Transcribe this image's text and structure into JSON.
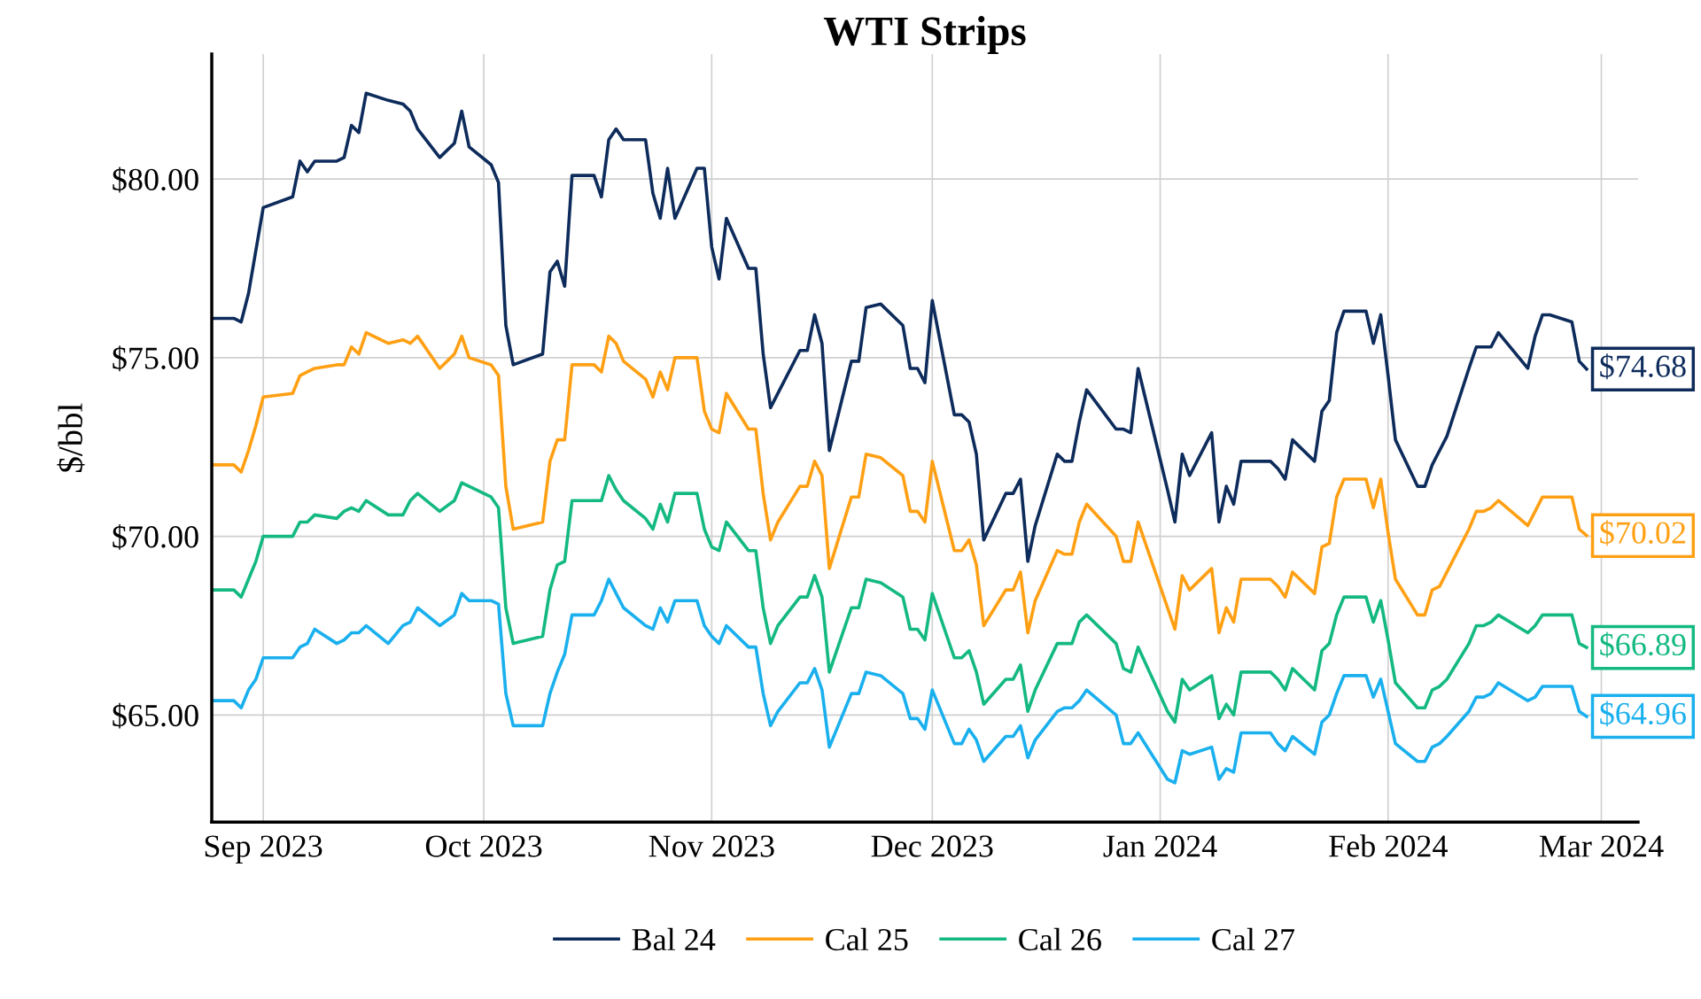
{
  "chart_data": {
    "type": "line",
    "title": "WTI Strips",
    "ylabel": "$/bbl",
    "x": [
      "2023-08-25",
      "2023-08-28",
      "2023-08-29",
      "2023-08-30",
      "2023-08-31",
      "2023-09-01",
      "2023-09-05",
      "2023-09-06",
      "2023-09-07",
      "2023-09-08",
      "2023-09-11",
      "2023-09-12",
      "2023-09-13",
      "2023-09-14",
      "2023-09-15",
      "2023-09-18",
      "2023-09-20",
      "2023-09-21",
      "2023-09-22",
      "2023-09-25",
      "2023-09-27",
      "2023-09-28",
      "2023-09-29",
      "2023-10-02",
      "2023-10-03",
      "2023-10-04",
      "2023-10-05",
      "2023-10-09",
      "2023-10-10",
      "2023-10-11",
      "2023-10-12",
      "2023-10-13",
      "2023-10-16",
      "2023-10-17",
      "2023-10-18",
      "2023-10-19",
      "2023-10-20",
      "2023-10-23",
      "2023-10-24",
      "2023-10-25",
      "2023-10-26",
      "2023-10-27",
      "2023-10-30",
      "2023-10-31",
      "2023-11-01",
      "2023-11-02",
      "2023-11-03",
      "2023-11-06",
      "2023-11-07",
      "2023-11-08",
      "2023-11-09",
      "2023-11-10",
      "2023-11-13",
      "2023-11-14",
      "2023-11-15",
      "2023-11-16",
      "2023-11-17",
      "2023-11-20",
      "2023-11-21",
      "2023-11-22",
      "2023-11-24",
      "2023-11-27",
      "2023-11-28",
      "2023-11-29",
      "2023-11-30",
      "2023-12-01",
      "2023-12-04",
      "2023-12-05",
      "2023-12-06",
      "2023-12-07",
      "2023-12-08",
      "2023-12-11",
      "2023-12-12",
      "2023-12-13",
      "2023-12-14",
      "2023-12-15",
      "2023-12-18",
      "2023-12-19",
      "2023-12-20",
      "2023-12-21",
      "2023-12-22",
      "2023-12-26",
      "2023-12-27",
      "2023-12-28",
      "2023-12-29",
      "2024-01-02",
      "2024-01-03",
      "2024-01-04",
      "2024-01-05",
      "2024-01-08",
      "2024-01-09",
      "2024-01-10",
      "2024-01-11",
      "2024-01-12",
      "2024-01-16",
      "2024-01-17",
      "2024-01-18",
      "2024-01-19",
      "2024-01-22",
      "2024-01-23",
      "2024-01-24",
      "2024-01-25",
      "2024-01-26",
      "2024-01-29",
      "2024-01-30",
      "2024-01-31",
      "2024-02-01",
      "2024-02-02",
      "2024-02-05",
      "2024-02-06",
      "2024-02-07",
      "2024-02-08",
      "2024-02-09",
      "2024-02-12",
      "2024-02-13",
      "2024-02-14",
      "2024-02-15",
      "2024-02-16",
      "2024-02-20",
      "2024-02-21",
      "2024-02-22",
      "2024-02-23",
      "2024-02-26",
      "2024-02-27",
      "2024-02-28"
    ],
    "series": [
      {
        "name": "Bal 24",
        "color": "#0d2b5b",
        "values": [
          76.1,
          76.1,
          76.0,
          76.8,
          78.0,
          79.2,
          79.5,
          80.5,
          80.2,
          80.5,
          80.5,
          80.6,
          81.5,
          81.3,
          82.4,
          82.2,
          82.1,
          81.9,
          81.4,
          80.6,
          81.0,
          81.9,
          80.9,
          80.4,
          79.9,
          75.9,
          74.8,
          75.1,
          77.4,
          77.7,
          77.0,
          80.1,
          80.1,
          79.5,
          81.1,
          81.4,
          81.1,
          81.1,
          79.6,
          78.9,
          80.3,
          78.9,
          80.3,
          80.3,
          78.1,
          77.2,
          78.9,
          77.5,
          77.5,
          75.1,
          73.6,
          74.0,
          75.2,
          75.2,
          76.2,
          75.4,
          72.4,
          74.9,
          74.9,
          76.4,
          76.5,
          75.9,
          74.7,
          74.7,
          74.3,
          76.6,
          73.4,
          73.4,
          73.2,
          72.3,
          69.9,
          71.2,
          71.2,
          71.6,
          69.3,
          70.3,
          72.3,
          72.1,
          72.1,
          73.2,
          74.1,
          73.0,
          73.0,
          72.9,
          74.7,
          71.3,
          70.4,
          72.3,
          71.7,
          72.9,
          70.4,
          71.4,
          70.9,
          72.1,
          72.1,
          71.9,
          71.6,
          72.7,
          72.1,
          73.5,
          73.8,
          75.7,
          76.3,
          76.3,
          75.4,
          76.2,
          74.5,
          72.7,
          71.4,
          71.4,
          72.0,
          72.4,
          72.8,
          74.7,
          75.3,
          75.3,
          75.3,
          75.7,
          74.7,
          75.6,
          76.2,
          76.2,
          76.0,
          74.9,
          74.68
        ],
        "value_labels": [
          null,
          null,
          null,
          null,
          null,
          null,
          null,
          null,
          null,
          null,
          null,
          null,
          null,
          null,
          null,
          null,
          null,
          null,
          null,
          null,
          null,
          null,
          null,
          null,
          null,
          null,
          null,
          null,
          null,
          null,
          null,
          null,
          null,
          null,
          null,
          null,
          null,
          null,
          null,
          null,
          null,
          null,
          null,
          null,
          null,
          null,
          null,
          null,
          null,
          null,
          null,
          null,
          null,
          null,
          null,
          null,
          null,
          null,
          null,
          null,
          null,
          null,
          null,
          null,
          null,
          null,
          null,
          null,
          null,
          null,
          null,
          null,
          null,
          null,
          null,
          null,
          null,
          null,
          null,
          null,
          null,
          null,
          null,
          null,
          null,
          null,
          null,
          null,
          null,
          null,
          null,
          null,
          null,
          null,
          null,
          null,
          null,
          null,
          null,
          null,
          null,
          null,
          null,
          null,
          null,
          null,
          null,
          null,
          null,
          null,
          null,
          null,
          null,
          null,
          null,
          null,
          null,
          null,
          null,
          null,
          null,
          null,
          null,
          null,
          "$74.68"
        ]
      },
      {
        "name": "Cal 25",
        "color": "#ffa014",
        "values": [
          72.0,
          72.0,
          71.8,
          72.4,
          73.1,
          73.9,
          74.0,
          74.5,
          74.6,
          74.7,
          74.8,
          74.8,
          75.3,
          75.1,
          75.7,
          75.4,
          75.5,
          75.4,
          75.6,
          74.7,
          75.1,
          75.6,
          75.0,
          74.8,
          74.5,
          71.4,
          70.2,
          70.4,
          72.1,
          72.7,
          72.7,
          74.8,
          74.8,
          74.6,
          75.6,
          75.4,
          74.9,
          74.4,
          73.9,
          74.6,
          74.1,
          75.0,
          75.0,
          73.5,
          73.0,
          72.9,
          74.0,
          73.0,
          73.0,
          71.2,
          69.9,
          70.4,
          71.4,
          71.4,
          72.1,
          71.7,
          69.1,
          71.1,
          71.1,
          72.3,
          72.2,
          71.7,
          70.7,
          70.7,
          70.4,
          72.1,
          69.6,
          69.6,
          69.9,
          69.2,
          67.5,
          68.5,
          68.5,
          69.0,
          67.3,
          68.2,
          69.6,
          69.5,
          69.5,
          70.4,
          70.9,
          70.0,
          69.3,
          69.3,
          70.4,
          68.0,
          67.4,
          68.9,
          68.5,
          69.1,
          67.3,
          68.0,
          67.6,
          68.8,
          68.8,
          68.6,
          68.3,
          69.0,
          68.4,
          69.7,
          69.8,
          71.1,
          71.6,
          71.6,
          70.8,
          71.6,
          70.1,
          68.8,
          67.8,
          67.8,
          68.5,
          68.6,
          69.0,
          70.2,
          70.7,
          70.7,
          70.8,
          71.0,
          70.3,
          70.7,
          71.1,
          71.1,
          71.1,
          70.2,
          70.02
        ],
        "value_labels": [
          null,
          null,
          null,
          null,
          null,
          null,
          null,
          null,
          null,
          null,
          null,
          null,
          null,
          null,
          null,
          null,
          null,
          null,
          null,
          null,
          null,
          null,
          null,
          null,
          null,
          null,
          null,
          null,
          null,
          null,
          null,
          null,
          null,
          null,
          null,
          null,
          null,
          null,
          null,
          null,
          null,
          null,
          null,
          null,
          null,
          null,
          null,
          null,
          null,
          null,
          null,
          null,
          null,
          null,
          null,
          null,
          null,
          null,
          null,
          null,
          null,
          null,
          null,
          null,
          null,
          null,
          null,
          null,
          null,
          null,
          null,
          null,
          null,
          null,
          null,
          null,
          null,
          null,
          null,
          null,
          null,
          null,
          null,
          null,
          null,
          null,
          null,
          null,
          null,
          null,
          null,
          null,
          null,
          null,
          null,
          null,
          null,
          null,
          null,
          null,
          null,
          null,
          null,
          null,
          null,
          null,
          null,
          null,
          null,
          null,
          null,
          null,
          null,
          null,
          null,
          null,
          null,
          null,
          null,
          null,
          null,
          null,
          null,
          null,
          "$70.02"
        ]
      },
      {
        "name": "Cal 26",
        "color": "#14b982",
        "values": [
          68.5,
          68.5,
          68.3,
          68.8,
          69.3,
          70.0,
          70.0,
          70.4,
          70.4,
          70.6,
          70.5,
          70.7,
          70.8,
          70.7,
          71.0,
          70.6,
          70.6,
          71.0,
          71.2,
          70.7,
          71.0,
          71.5,
          71.4,
          71.1,
          70.8,
          68.0,
          67.0,
          67.2,
          68.5,
          69.2,
          69.3,
          71.0,
          71.0,
          71.0,
          71.7,
          71.3,
          71.0,
          70.5,
          70.2,
          70.9,
          70.4,
          71.2,
          71.2,
          70.2,
          69.7,
          69.6,
          70.4,
          69.6,
          69.6,
          68.0,
          67.0,
          67.5,
          68.3,
          68.3,
          68.9,
          68.3,
          66.2,
          68.0,
          68.0,
          68.8,
          68.7,
          68.3,
          67.4,
          67.4,
          67.1,
          68.4,
          66.6,
          66.6,
          66.8,
          66.2,
          65.3,
          66.0,
          66.0,
          66.4,
          65.1,
          65.7,
          67.0,
          67.0,
          67.0,
          67.6,
          67.8,
          67.0,
          66.3,
          66.2,
          66.9,
          65.1,
          64.8,
          66.0,
          65.7,
          66.1,
          64.9,
          65.3,
          65.0,
          66.2,
          66.2,
          66.0,
          65.7,
          66.3,
          65.7,
          66.8,
          67.0,
          67.8,
          68.3,
          68.3,
          67.6,
          68.2,
          67.1,
          65.9,
          65.2,
          65.2,
          65.7,
          65.8,
          66.0,
          67.0,
          67.5,
          67.5,
          67.6,
          67.8,
          67.3,
          67.5,
          67.8,
          67.8,
          67.8,
          67.0,
          66.89
        ],
        "value_labels": [
          null,
          null,
          null,
          null,
          null,
          null,
          null,
          null,
          null,
          null,
          null,
          null,
          null,
          null,
          null,
          null,
          null,
          null,
          null,
          null,
          null,
          null,
          null,
          null,
          null,
          null,
          null,
          null,
          null,
          null,
          null,
          null,
          null,
          null,
          null,
          null,
          null,
          null,
          null,
          null,
          null,
          null,
          null,
          null,
          null,
          null,
          null,
          null,
          null,
          null,
          null,
          null,
          null,
          null,
          null,
          null,
          null,
          null,
          null,
          null,
          null,
          null,
          null,
          null,
          null,
          null,
          null,
          null,
          null,
          null,
          null,
          null,
          null,
          null,
          null,
          null,
          null,
          null,
          null,
          null,
          null,
          null,
          null,
          null,
          null,
          null,
          null,
          null,
          null,
          null,
          null,
          null,
          null,
          null,
          null,
          null,
          null,
          null,
          null,
          null,
          null,
          null,
          null,
          null,
          null,
          null,
          null,
          null,
          null,
          null,
          null,
          null,
          null,
          null,
          null,
          null,
          null,
          null,
          null,
          null,
          null,
          null,
          null,
          null,
          "$66.89"
        ]
      },
      {
        "name": "Cal 27",
        "color": "#1ab0ee",
        "values": [
          65.4,
          65.4,
          65.2,
          65.7,
          66.0,
          66.6,
          66.6,
          66.9,
          67.0,
          67.4,
          67.0,
          67.1,
          67.3,
          67.3,
          67.5,
          67.0,
          67.5,
          67.6,
          68.0,
          67.5,
          67.8,
          68.4,
          68.2,
          68.2,
          68.1,
          65.6,
          64.7,
          64.7,
          65.6,
          66.2,
          66.7,
          67.8,
          67.8,
          68.2,
          68.8,
          68.4,
          68.0,
          67.5,
          67.4,
          68.0,
          67.6,
          68.2,
          68.2,
          67.5,
          67.2,
          67.0,
          67.5,
          66.9,
          66.9,
          65.6,
          64.7,
          65.1,
          65.9,
          65.9,
          66.3,
          65.7,
          64.1,
          65.6,
          65.6,
          66.2,
          66.1,
          65.6,
          64.9,
          64.9,
          64.6,
          65.7,
          64.2,
          64.2,
          64.6,
          64.3,
          63.7,
          64.4,
          64.4,
          64.7,
          63.8,
          64.3,
          65.1,
          65.2,
          65.2,
          65.4,
          65.7,
          65.0,
          64.2,
          64.2,
          64.5,
          63.2,
          63.1,
          64.0,
          63.9,
          64.1,
          63.2,
          63.5,
          63.4,
          64.5,
          64.5,
          64.2,
          64.0,
          64.4,
          63.9,
          64.8,
          65.0,
          65.6,
          66.1,
          66.1,
          65.5,
          66.0,
          65.1,
          64.2,
          63.7,
          63.7,
          64.1,
          64.2,
          64.4,
          65.1,
          65.5,
          65.5,
          65.6,
          65.9,
          65.4,
          65.5,
          65.8,
          65.8,
          65.8,
          65.1,
          64.96
        ],
        "value_labels": [
          null,
          null,
          null,
          null,
          null,
          null,
          null,
          null,
          null,
          null,
          null,
          null,
          null,
          null,
          null,
          null,
          null,
          null,
          null,
          null,
          null,
          null,
          null,
          null,
          null,
          null,
          null,
          null,
          null,
          null,
          null,
          null,
          null,
          null,
          null,
          null,
          null,
          null,
          null,
          null,
          null,
          null,
          null,
          null,
          null,
          null,
          null,
          null,
          null,
          null,
          null,
          null,
          null,
          null,
          null,
          null,
          null,
          null,
          null,
          null,
          null,
          null,
          null,
          null,
          null,
          null,
          null,
          null,
          null,
          null,
          null,
          null,
          null,
          null,
          null,
          null,
          null,
          null,
          null,
          null,
          null,
          null,
          null,
          null,
          null,
          null,
          null,
          null,
          null,
          null,
          null,
          null,
          null,
          null,
          null,
          null,
          null,
          null,
          null,
          null,
          null,
          null,
          null,
          null,
          null,
          null,
          null,
          null,
          null,
          null,
          null,
          null,
          null,
          null,
          null,
          null,
          null,
          null,
          null,
          null,
          null,
          null,
          null,
          null,
          "$64.96"
        ]
      }
    ],
    "xlim": [
      "2023-08-25",
      "2024-03-06"
    ],
    "xticks": [
      {
        "value": "2023-09-01",
        "label": "Sep 2023"
      },
      {
        "value": "2023-10-01",
        "label": "Oct 2023"
      },
      {
        "value": "2023-11-01",
        "label": "Nov 2023"
      },
      {
        "value": "2023-12-01",
        "label": "Dec 2023"
      },
      {
        "value": "2024-01-01",
        "label": "Jan 2024"
      },
      {
        "value": "2024-02-01",
        "label": "Feb 2024"
      },
      {
        "value": "2024-03-01",
        "label": "Mar 2024"
      }
    ],
    "ylim": [
      62.0,
      83.5
    ],
    "yticks": [
      {
        "value": 65,
        "label": "$65.00"
      },
      {
        "value": 70,
        "label": "$70.00"
      },
      {
        "value": 75,
        "label": "$75.00"
      },
      {
        "value": 80,
        "label": "$80.00"
      }
    ],
    "grid": true,
    "legend": "bottom",
    "marker": "none",
    "line_style": "solid"
  }
}
